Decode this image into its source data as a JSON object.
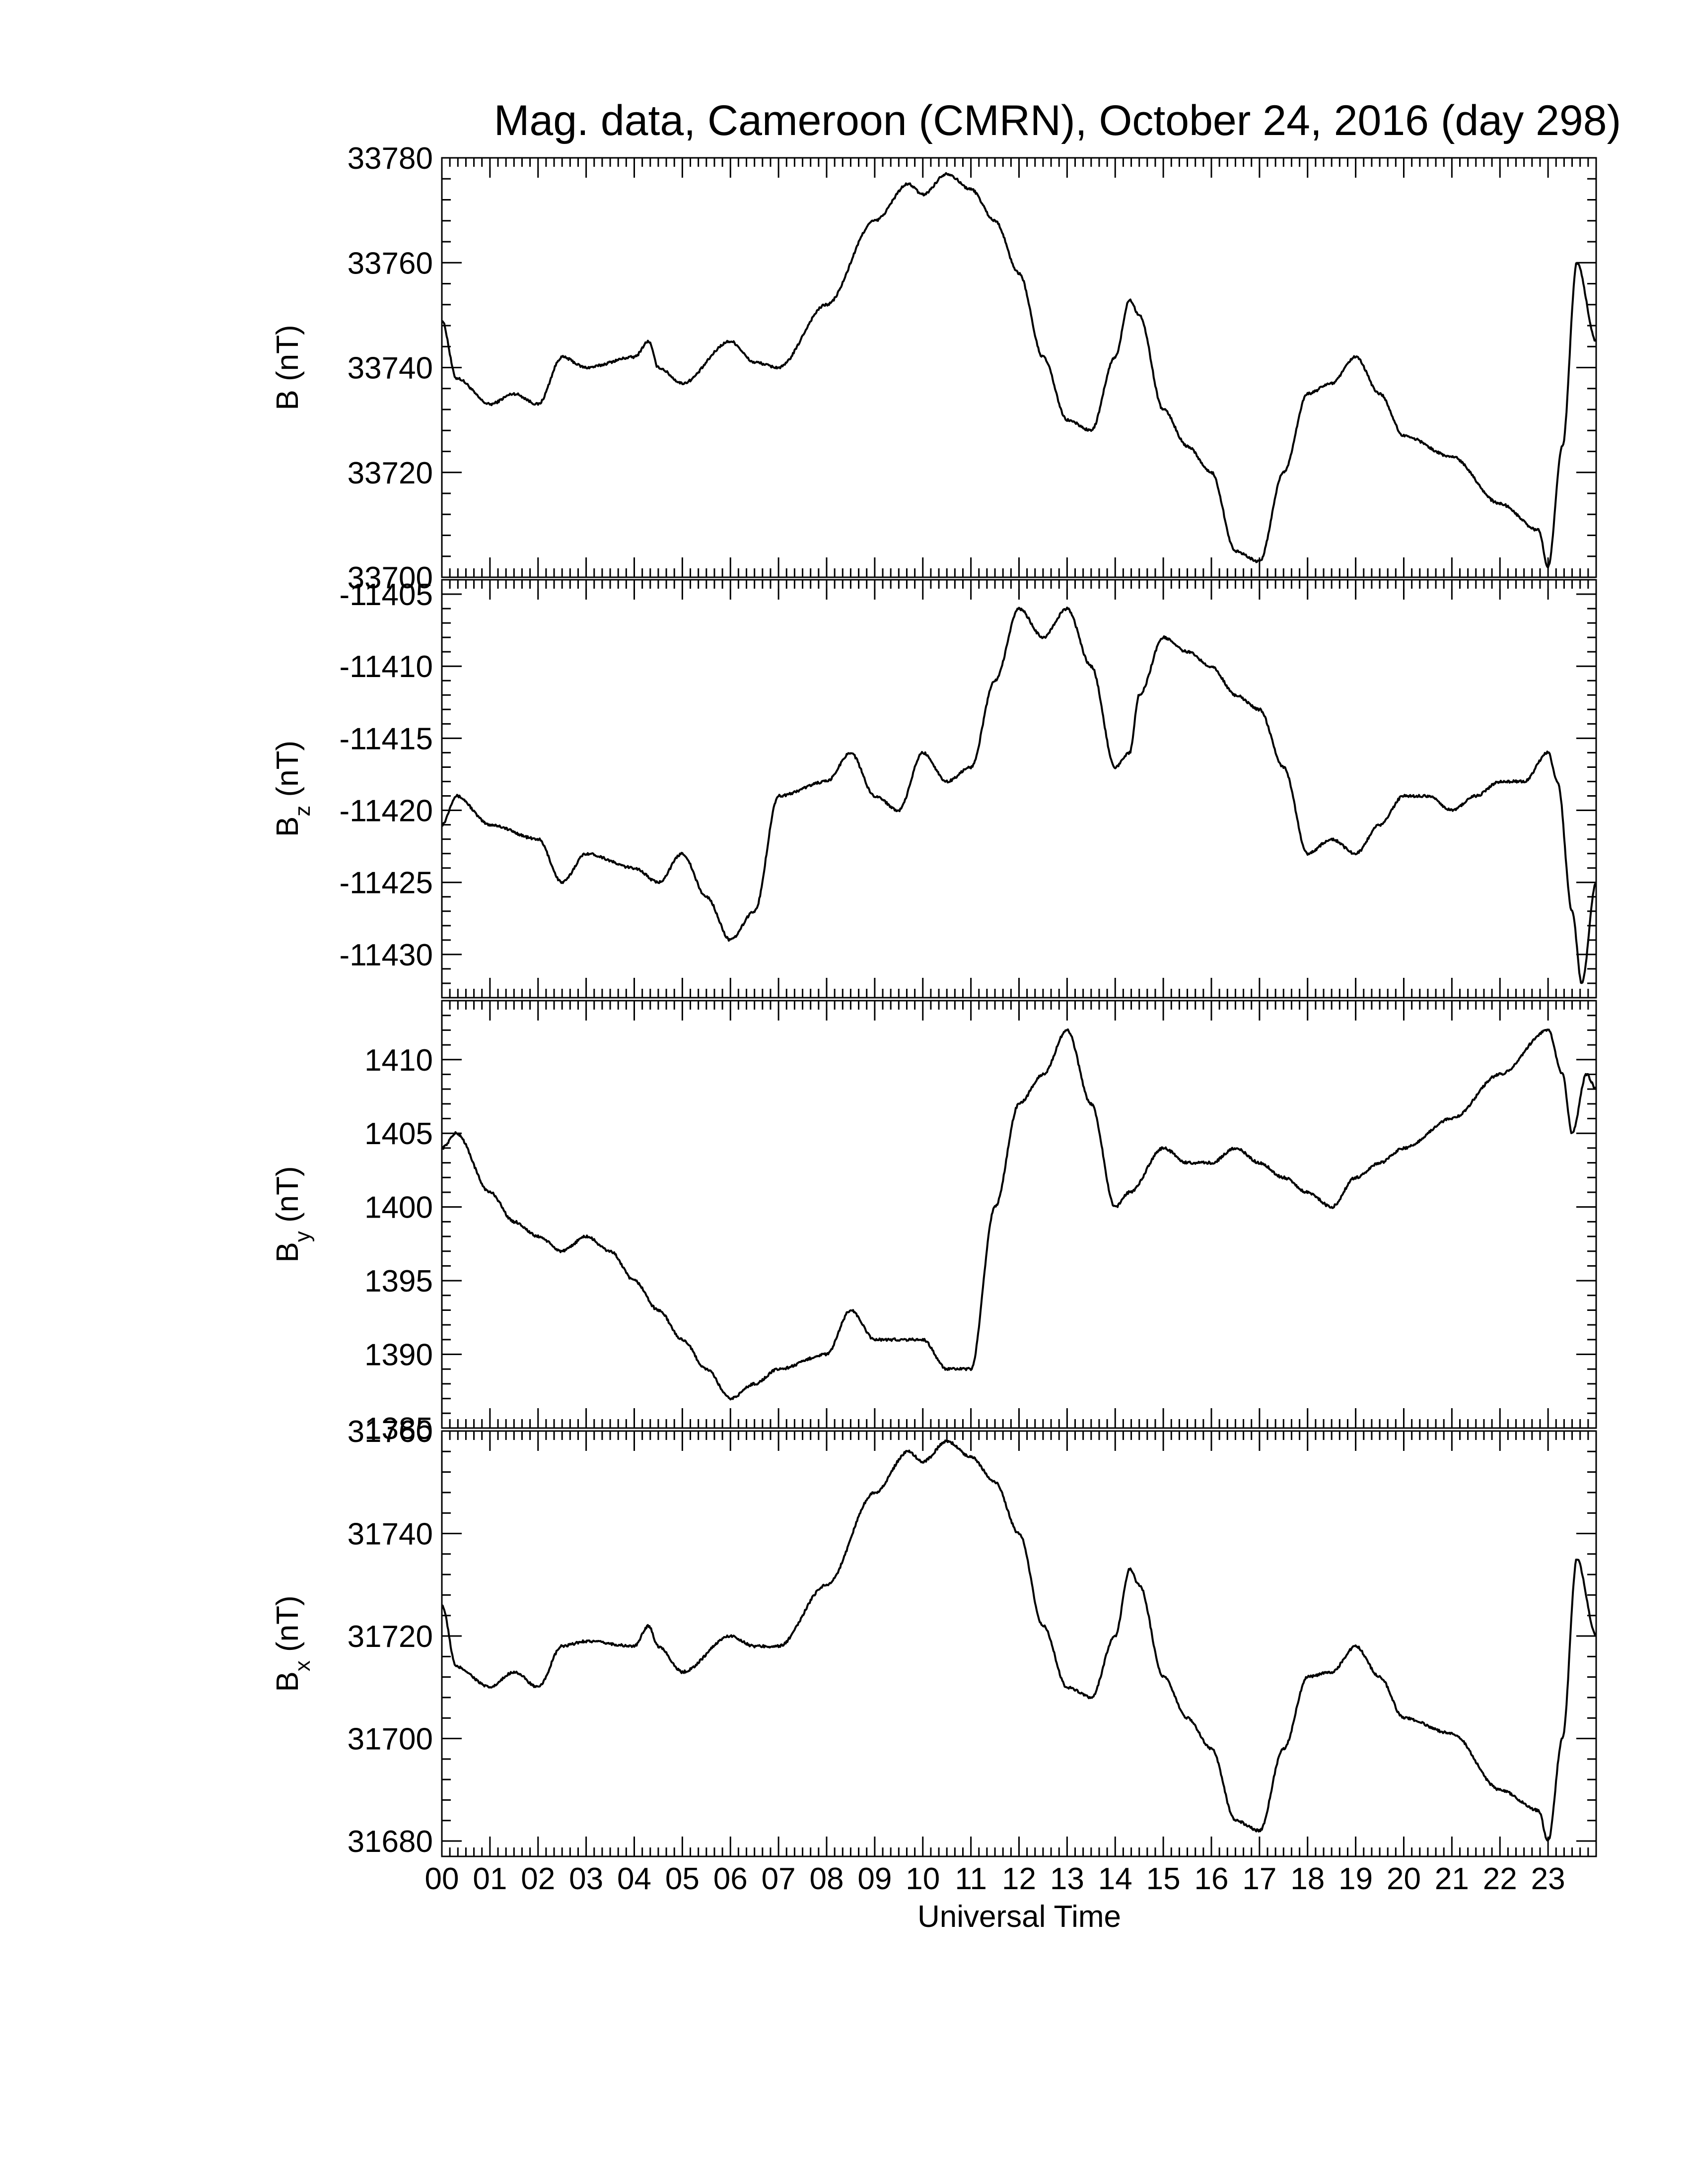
{
  "chart_data": [
    {
      "type": "line",
      "title": "Mag. data, Cameroon (CMRN), October 24, 2016 (day 298)",
      "ylabel": {
        "main": "B",
        "sub": "",
        "unit": "(nT)"
      },
      "ylim": [
        33700,
        33780
      ],
      "yticks": [
        "33700",
        "33720",
        "33740",
        "33760",
        "33780"
      ],
      "x": [
        0.0,
        0.3,
        1.0,
        1.5,
        2.0,
        2.5,
        3.0,
        4.0,
        4.3,
        4.5,
        5.0,
        6.0,
        6.5,
        7.0,
        8.0,
        9.0,
        9.7,
        10.0,
        10.5,
        11.0,
        11.5,
        12.0,
        12.5,
        13.0,
        13.5,
        14.0,
        14.3,
        14.5,
        15.0,
        15.5,
        16.0,
        16.5,
        17.0,
        17.5,
        18.0,
        18.5,
        19.0,
        19.5,
        20.0,
        21.0,
        22.0,
        22.8,
        23.0,
        23.3,
        23.6,
        24.0
      ],
      "y": [
        33749,
        33738,
        33733,
        33735,
        33733,
        33742,
        33740,
        33742,
        33745,
        33740,
        33737,
        33745,
        33741,
        33740,
        33752,
        33768,
        33775,
        33773,
        33777,
        33774,
        33768,
        33758,
        33742,
        33730,
        33728,
        33742,
        33753,
        33750,
        33732,
        33725,
        33720,
        33705,
        33703,
        33720,
        33735,
        33737,
        33742,
        33735,
        33727,
        33723,
        33714,
        33709,
        33702,
        33725,
        33760,
        33745
      ]
    },
    {
      "type": "line",
      "ylabel": {
        "main": "B",
        "sub": "z",
        "unit": "(nT)"
      },
      "ylim": [
        -11433,
        -11404
      ],
      "yticks": [
        "-11430",
        "-11425",
        "-11420",
        "-11415",
        "-11410",
        "-11405"
      ],
      "x": [
        0.0,
        0.3,
        1.0,
        2.0,
        2.5,
        3.0,
        4.0,
        4.5,
        5.0,
        5.5,
        6.0,
        6.5,
        7.0,
        8.0,
        8.5,
        9.0,
        9.5,
        10.0,
        10.5,
        11.0,
        11.5,
        12.0,
        12.5,
        13.0,
        13.5,
        14.0,
        14.3,
        14.5,
        15.0,
        15.5,
        16.0,
        16.5,
        17.0,
        17.5,
        18.0,
        18.5,
        19.0,
        19.5,
        20.0,
        20.5,
        21.0,
        21.5,
        22.0,
        22.5,
        23.0,
        23.2,
        23.5,
        23.7,
        24.0
      ],
      "y": [
        -11421,
        -11419,
        -11421,
        -11422,
        -11425,
        -11423,
        -11424,
        -11425,
        -11423,
        -11426,
        -11429,
        -11427,
        -11419,
        -11418,
        -11416,
        -11419,
        -11420,
        -11416,
        -11418,
        -11417,
        -11411,
        -11406,
        -11408,
        -11406,
        -11410,
        -11417,
        -11416,
        -11412,
        -11408,
        -11409,
        -11410,
        -11412,
        -11413,
        -11417,
        -11423,
        -11422,
        -11423,
        -11421,
        -11419,
        -11419,
        -11420,
        -11419,
        -11418,
        -11418,
        -11416,
        -11418,
        -11427,
        -11432,
        -11425
      ]
    },
    {
      "type": "line",
      "ylabel": {
        "main": "B",
        "sub": "y",
        "unit": "(nT)"
      },
      "ylim": [
        1385,
        1414
      ],
      "yticks": [
        "1385",
        "1390",
        "1395",
        "1400",
        "1405",
        "1410"
      ],
      "x": [
        0.0,
        0.3,
        1.0,
        1.5,
        2.0,
        2.5,
        3.0,
        3.5,
        4.0,
        4.5,
        5.0,
        5.5,
        6.0,
        6.5,
        7.0,
        8.0,
        8.5,
        9.0,
        9.5,
        10.0,
        10.5,
        11.0,
        11.5,
        12.0,
        12.5,
        13.0,
        13.5,
        14.0,
        14.3,
        15.0,
        15.5,
        16.0,
        16.5,
        17.0,
        17.5,
        18.0,
        18.5,
        19.0,
        19.5,
        20.0,
        21.0,
        22.0,
        23.0,
        23.3,
        23.5,
        23.8,
        24.0
      ],
      "y": [
        1404,
        1405,
        1401,
        1399,
        1398,
        1397,
        1398,
        1397,
        1395,
        1393,
        1391,
        1389,
        1387,
        1388,
        1389,
        1390,
        1393,
        1391,
        1391,
        1391,
        1389,
        1389,
        1400,
        1407,
        1409,
        1412,
        1407,
        1400,
        1401,
        1404,
        1403,
        1403,
        1404,
        1403,
        1402,
        1401,
        1400,
        1402,
        1403,
        1404,
        1406,
        1409,
        1412,
        1409,
        1405,
        1409,
        1408
      ]
    },
    {
      "type": "line",
      "ylabel": {
        "main": "B",
        "sub": "x",
        "unit": "(nT)"
      },
      "ylim": [
        31677,
        31760
      ],
      "yticks": [
        "31680",
        "31700",
        "31720",
        "31740",
        "31760"
      ],
      "x": [
        0.0,
        0.3,
        1.0,
        1.5,
        2.0,
        2.5,
        3.0,
        4.0,
        4.3,
        4.5,
        5.0,
        6.0,
        6.5,
        7.0,
        8.0,
        9.0,
        9.7,
        10.0,
        10.5,
        11.0,
        11.5,
        12.0,
        12.5,
        13.0,
        13.5,
        14.0,
        14.3,
        14.5,
        15.0,
        15.5,
        16.0,
        16.5,
        17.0,
        17.5,
        18.0,
        18.5,
        19.0,
        19.5,
        20.0,
        21.0,
        22.0,
        22.8,
        23.0,
        23.3,
        23.6,
        24.0
      ],
      "y": [
        31726,
        31714,
        31710,
        31713,
        31710,
        31718,
        31719,
        31718,
        31722,
        31718,
        31713,
        31720,
        31718,
        31718,
        31730,
        31748,
        31756,
        31754,
        31758,
        31755,
        31750,
        31740,
        31722,
        31710,
        31708,
        31720,
        31733,
        31730,
        31712,
        31704,
        31698,
        31684,
        31682,
        31698,
        31712,
        31713,
        31718,
        31712,
        31704,
        31701,
        31690,
        31686,
        31680,
        31700,
        31735,
        31720
      ]
    }
  ],
  "x_axis": {
    "xlim": [
      0,
      24
    ],
    "xlabel": "Universal Time",
    "tick_labels": [
      "00",
      "01",
      "02",
      "03",
      "04",
      "05",
      "06",
      "07",
      "08",
      "09",
      "10",
      "11",
      "12",
      "13",
      "14",
      "15",
      "16",
      "17",
      "18",
      "19",
      "20",
      "21",
      "22",
      "23"
    ]
  },
  "line_color": "#000000"
}
